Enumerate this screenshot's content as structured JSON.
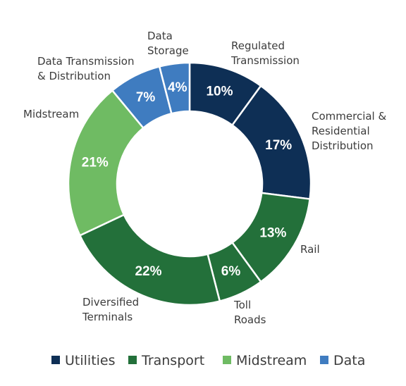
{
  "chart_data": {
    "type": "pie",
    "subtype": "donut",
    "grid": false,
    "legend_position": "bottom",
    "slices": [
      {
        "label_lines": [
          "Regulated",
          "Transmission"
        ],
        "value": 10,
        "display": "10%",
        "group": "Utilities"
      },
      {
        "label_lines": [
          "Commercial &",
          "Residential",
          "Distribution"
        ],
        "value": 17,
        "display": "17%",
        "group": "Utilities"
      },
      {
        "label_lines": [
          "Rail"
        ],
        "value": 13,
        "display": "13%",
        "group": "Transport"
      },
      {
        "label_lines": [
          "Toll",
          "Roads"
        ],
        "value": 6,
        "display": "6%",
        "group": "Transport"
      },
      {
        "label_lines": [
          "Diversified",
          "Terminals"
        ],
        "value": 22,
        "display": "22%",
        "group": "Transport"
      },
      {
        "label_lines": [
          "Midstream"
        ],
        "value": 21,
        "display": "21%",
        "group": "Midstream"
      },
      {
        "label_lines": [
          "Data Transmission",
          "& Distribution"
        ],
        "value": 7,
        "display": "7%",
        "group": "Data"
      },
      {
        "label_lines": [
          "Data",
          "Storage"
        ],
        "value": 4,
        "display": "4%",
        "group": "Data"
      }
    ],
    "legend": [
      {
        "name": "Utilities",
        "color": "#0e2f55"
      },
      {
        "name": "Transport",
        "color": "#23703a"
      },
      {
        "name": "Midstream",
        "color": "#6fbb63"
      },
      {
        "name": "Data",
        "color": "#3f7cc0"
      }
    ]
  }
}
